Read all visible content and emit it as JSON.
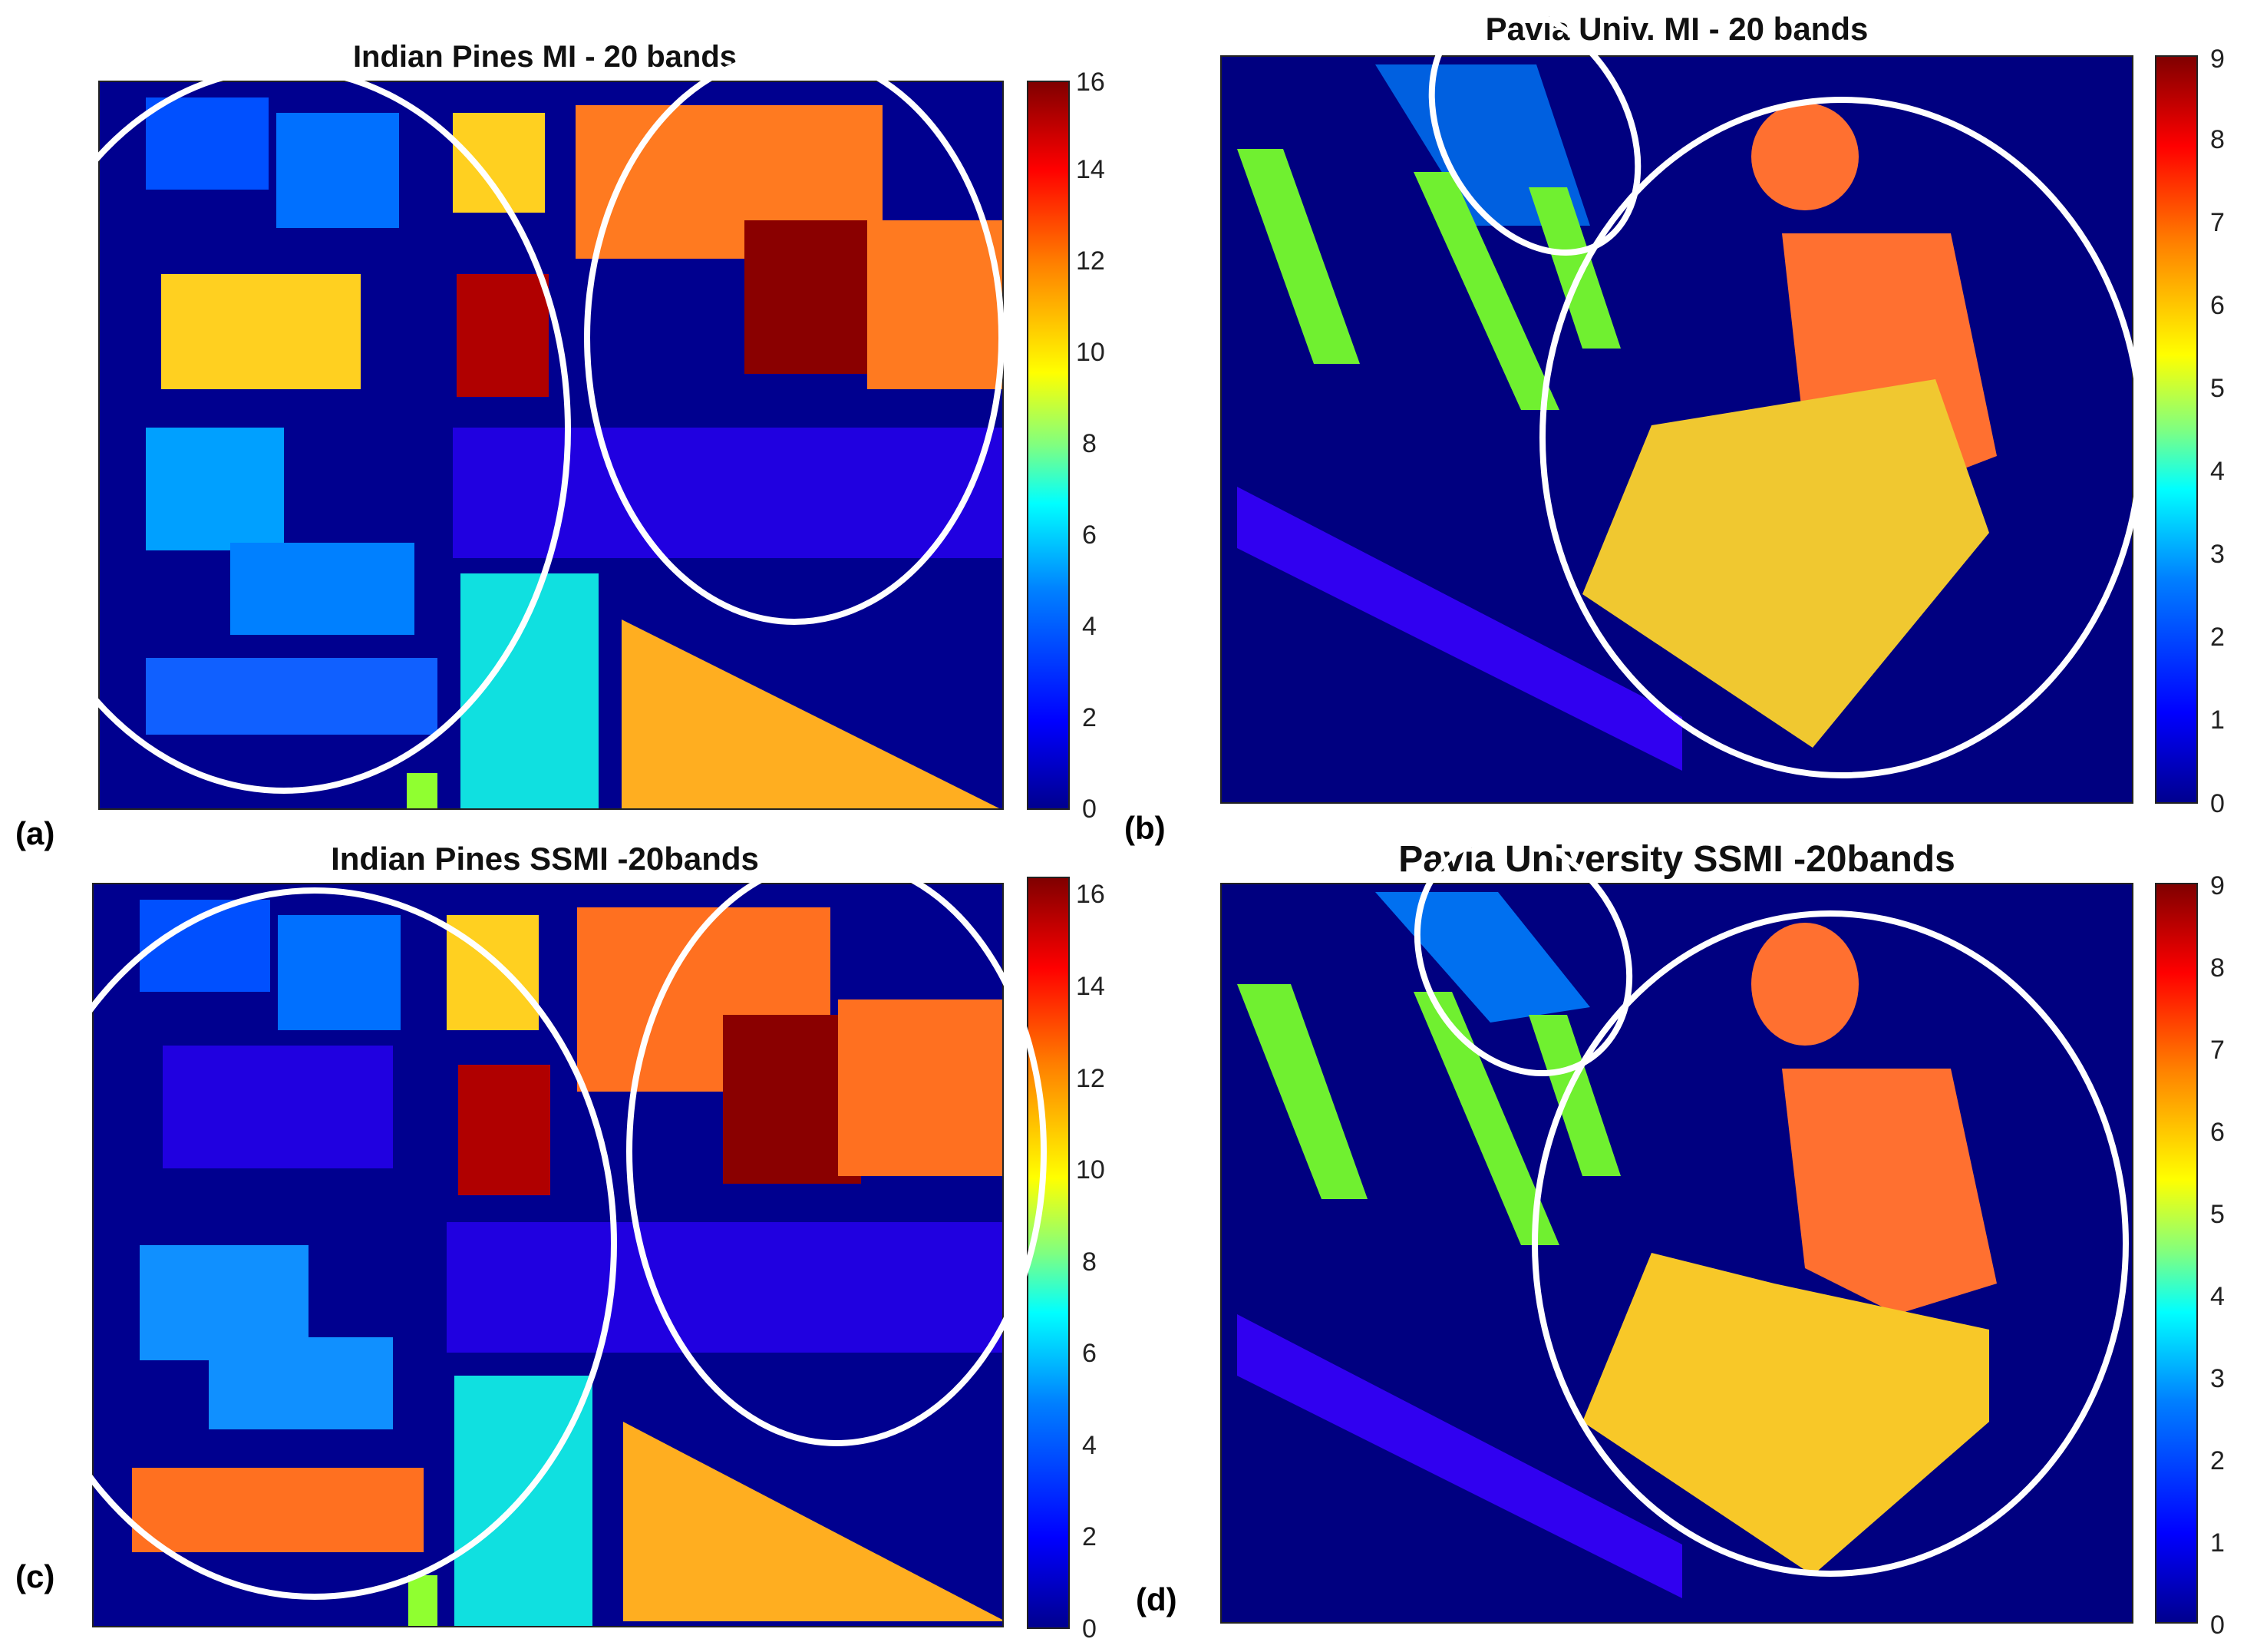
{
  "colorscale": [
    "#00008f",
    "#0000ff",
    "#0080ff",
    "#00ffff",
    "#80ff80",
    "#ffff00",
    "#ff8000",
    "#ff0000",
    "#800000"
  ],
  "chart_data": [
    {
      "type": "heatmap",
      "panel_label": "(a)",
      "title": "Indian Pines MI - 20 bands",
      "colorbar": {
        "min": 0,
        "max": 16,
        "ticks": [
          "0",
          "2",
          "4",
          "6",
          "8",
          "10",
          "12",
          "14",
          "16"
        ]
      }
    },
    {
      "type": "heatmap",
      "panel_label": "(b)",
      "title": "Pavia Univ. MI - 20 bands",
      "colorbar": {
        "min": 0,
        "max": 9,
        "ticks": [
          "0",
          "1",
          "2",
          "3",
          "4",
          "5",
          "6",
          "7",
          "8",
          "9"
        ]
      }
    },
    {
      "type": "heatmap",
      "panel_label": "(c)",
      "title": "Indian Pines SSMI -20bands",
      "colorbar": {
        "min": 0,
        "max": 16,
        "ticks": [
          "0",
          "2",
          "4",
          "6",
          "8",
          "10",
          "12",
          "14",
          "16"
        ]
      }
    },
    {
      "type": "heatmap",
      "panel_label": "(d)",
      "title": "Pavia University SSMI -20bands",
      "colorbar": {
        "min": 0,
        "max": 9,
        "ticks": [
          "0",
          "1",
          "2",
          "3",
          "4",
          "5",
          "6",
          "7",
          "8",
          "9"
        ]
      }
    }
  ]
}
